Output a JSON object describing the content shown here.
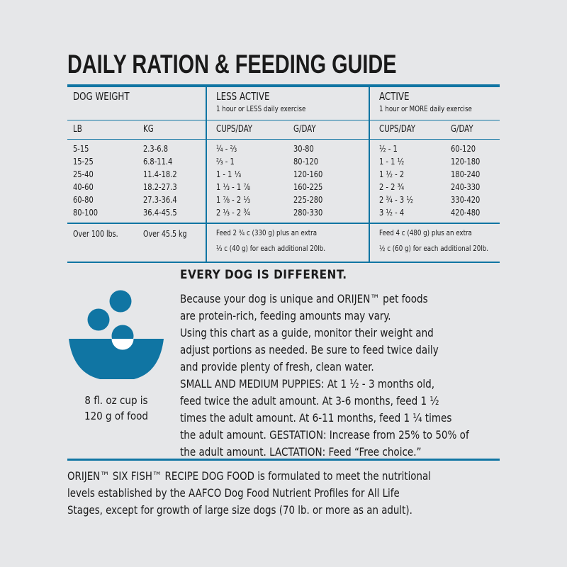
{
  "title": "DAILY RATION & FEEDING GUIDE",
  "table": {
    "dog_weight": "DOG WEIGHT",
    "less_active": {
      "title": "LESS ACTIVE",
      "subtitle": "1 hour or LESS daily exercise"
    },
    "active": {
      "title": "ACTIVE",
      "subtitle": "1 hour or MORE daily exercise"
    },
    "columns": [
      "LB",
      "KG",
      "CUPS/DAY",
      "G/DAY",
      "CUPS/DAY",
      "G/DAY"
    ],
    "rows": [
      [
        "5-15",
        "2.3-6.8",
        "¼ - ⅔",
        "30-80",
        "½ - 1",
        "60-120"
      ],
      [
        "15-25",
        "6.8-11.4",
        "⅔ - 1",
        "80-120",
        "1 - 1 ½",
        "120-180"
      ],
      [
        "25-40",
        "11.4-18.2",
        "1 - 1 ⅓",
        "120-160",
        "1 ½ - 2",
        "180-240"
      ],
      [
        "40-60",
        "18.2-27.3",
        "1 ⅓ - 1 ⅞",
        "160-225",
        "2 - 2 ¾",
        "240-330"
      ],
      [
        "60-80",
        "27.3-36.4",
        "1 ⅞ - 2 ⅓",
        "225-280",
        "2 ¾ - 3 ½",
        "330-420"
      ],
      [
        "80-100",
        "36.4-45.5",
        "2 ⅓ - 2 ¾",
        "280-330",
        "3 ½ - 4",
        "420-480"
      ]
    ],
    "over": {
      "lb": "Over 100 lbs.",
      "kg": "Over 45.5 kg",
      "less_active": [
        "Feed 2 ¾ c (330 g) plus an extra",
        "⅓ c (40 g) for each additional 20lb."
      ],
      "active": [
        "Feed 4 c (480 g) plus an extra",
        "½ c (60 g) for each additional 20lb."
      ]
    }
  },
  "every_dog": {
    "heading": "EVERY DOG IS DIFFERENT.",
    "lines": [
      "Because your dog is unique and ORIJEN™ pet foods",
      "are protein-rich, feeding amounts may vary.",
      "Using this chart as a guide, monitor their weight and",
      "adjust portions as needed. Be sure to feed twice daily",
      "and provide plenty of fresh, clean water.",
      "SMALL AND MEDIUM PUPPIES: At 1 ½ - 3 months old,",
      "feed twice the adult amount. At 3-6 months, feed 1 ½",
      "times the adult amount. At 6-11 months, feed 1 ¼  times",
      "the adult amount. GESTATION: Increase from 25% to 50% of",
      "the adult amount. LACTATION: Feed “Free choice.”"
    ]
  },
  "cup_caption": [
    "8 fl. oz cup is",
    "120 g of food"
  ],
  "footer": [
    "ORIJEN™ SIX FISH™ RECIPE DOG FOOD is formulated to meet the nutritional",
    "levels established by the AAFCO Dog Food Nutrient Profiles for All Life",
    "Stages, except for growth of large size dogs (70 lb. or more as an adult)."
  ],
  "colors": {
    "accent": "#1075a3",
    "background": "#e6e7e9"
  },
  "icon": "bowl-with-food-icon"
}
